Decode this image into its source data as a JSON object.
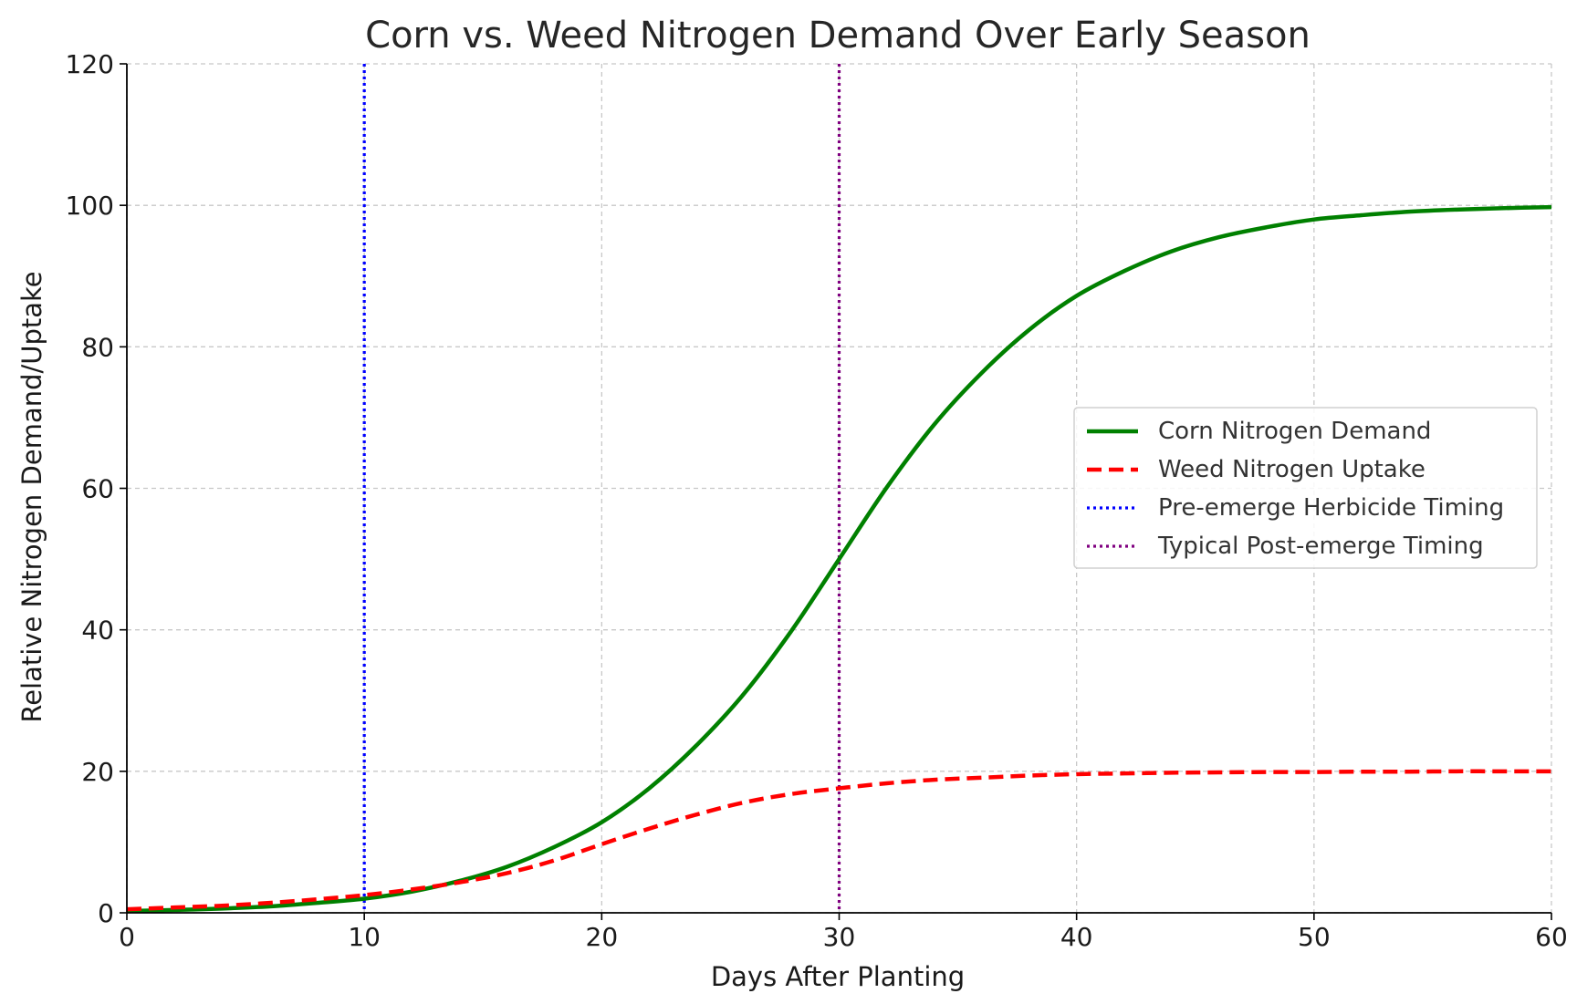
{
  "chart_data": {
    "type": "line",
    "title": "Corn vs. Weed Nitrogen Demand Over Early Season",
    "xlabel": "Days After Planting",
    "ylabel": "Relative Nitrogen Demand/Uptake",
    "xlim": [
      0,
      60
    ],
    "ylim": [
      0,
      120
    ],
    "xticks": [
      0,
      10,
      20,
      30,
      40,
      50,
      60
    ],
    "yticks": [
      0,
      20,
      40,
      60,
      80,
      100,
      120
    ],
    "xtick_labels": [
      "0",
      "10",
      "20",
      "30",
      "40",
      "50",
      "60"
    ],
    "ytick_labels": [
      "0",
      "20",
      "40",
      "60",
      "80",
      "100",
      "120"
    ],
    "grid": true,
    "legend_position": "center-right",
    "x": [
      0,
      2,
      4,
      6,
      8,
      10,
      12,
      14,
      16,
      18,
      20,
      22,
      24,
      26,
      28,
      30,
      32,
      34,
      36,
      38,
      40,
      42,
      44,
      46,
      48,
      50,
      52,
      54,
      56,
      58,
      60
    ],
    "series": [
      {
        "name": "Corn Nitrogen Demand",
        "color": "#008000",
        "style": "solid",
        "values": [
          0.25,
          0.4,
          0.6,
          0.9,
          1.4,
          2.0,
          3.0,
          4.5,
          6.5,
          9.3,
          12.8,
          17.6,
          23.7,
          31.0,
          39.9,
          50.0,
          60.1,
          69.0,
          76.3,
          82.4,
          87.2,
          90.7,
          93.5,
          95.5,
          96.9,
          98.0,
          98.6,
          99.1,
          99.4,
          99.6,
          99.75
        ]
      },
      {
        "name": "Weed Nitrogen Uptake",
        "color": "#ff0000",
        "style": "dashed",
        "values": [
          0.5,
          0.75,
          1.0,
          1.4,
          1.9,
          2.5,
          3.3,
          4.3,
          5.6,
          7.4,
          9.7,
          11.9,
          13.9,
          15.6,
          16.8,
          17.6,
          18.3,
          18.8,
          19.1,
          19.4,
          19.6,
          19.7,
          19.8,
          19.85,
          19.9,
          19.9,
          19.95,
          19.95,
          20.0,
          20.0,
          20.0
        ]
      }
    ],
    "vlines": [
      {
        "name": "Pre-emerge Herbicide Timing",
        "x": 10,
        "color": "#0000ff",
        "style": "dotted"
      },
      {
        "name": "Typical Post-emerge Timing",
        "x": 30,
        "color": "#800080",
        "style": "dotted"
      }
    ]
  }
}
